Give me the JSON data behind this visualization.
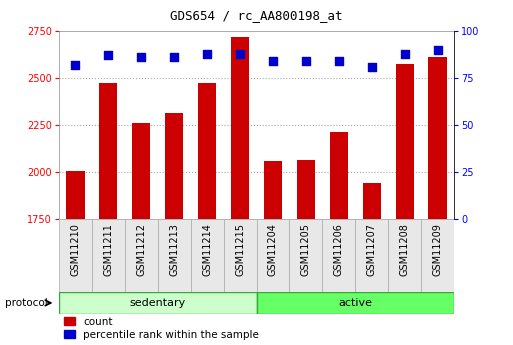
{
  "title": "GDS654 / rc_AA800198_at",
  "samples": [
    "GSM11210",
    "GSM11211",
    "GSM11212",
    "GSM11213",
    "GSM11214",
    "GSM11215",
    "GSM11204",
    "GSM11205",
    "GSM11206",
    "GSM11207",
    "GSM11208",
    "GSM11209"
  ],
  "counts": [
    2005,
    2475,
    2260,
    2315,
    2475,
    2720,
    2060,
    2065,
    2215,
    1940,
    2575,
    2610
  ],
  "percentiles": [
    82,
    87,
    86,
    86,
    88,
    88,
    84,
    84,
    84,
    81,
    88,
    90
  ],
  "groups": [
    "sedentary",
    "sedentary",
    "sedentary",
    "sedentary",
    "sedentary",
    "sedentary",
    "active",
    "active",
    "active",
    "active",
    "active",
    "active"
  ],
  "group_colors": {
    "sedentary": "#ccffcc",
    "active": "#66ff66"
  },
  "bar_color": "#cc0000",
  "dot_color": "#0000cc",
  "ylim_left": [
    1750,
    2750
  ],
  "ylim_right": [
    0,
    100
  ],
  "yticks_left": [
    1750,
    2000,
    2250,
    2500,
    2750
  ],
  "yticks_right": [
    0,
    25,
    50,
    75,
    100
  ],
  "grid_color": "#aaaaaa",
  "bg_color": "#ffffff",
  "plot_bg": "#ffffff",
  "legend_count_label": "count",
  "legend_pct_label": "percentile rank within the sample",
  "protocol_label": "protocol",
  "sedentary_label": "sedentary",
  "active_label": "active",
  "bar_width": 0.55,
  "dot_size": 40,
  "title_fontsize": 9,
  "tick_fontsize": 7,
  "label_fontsize": 7,
  "legend_fontsize": 7.5
}
